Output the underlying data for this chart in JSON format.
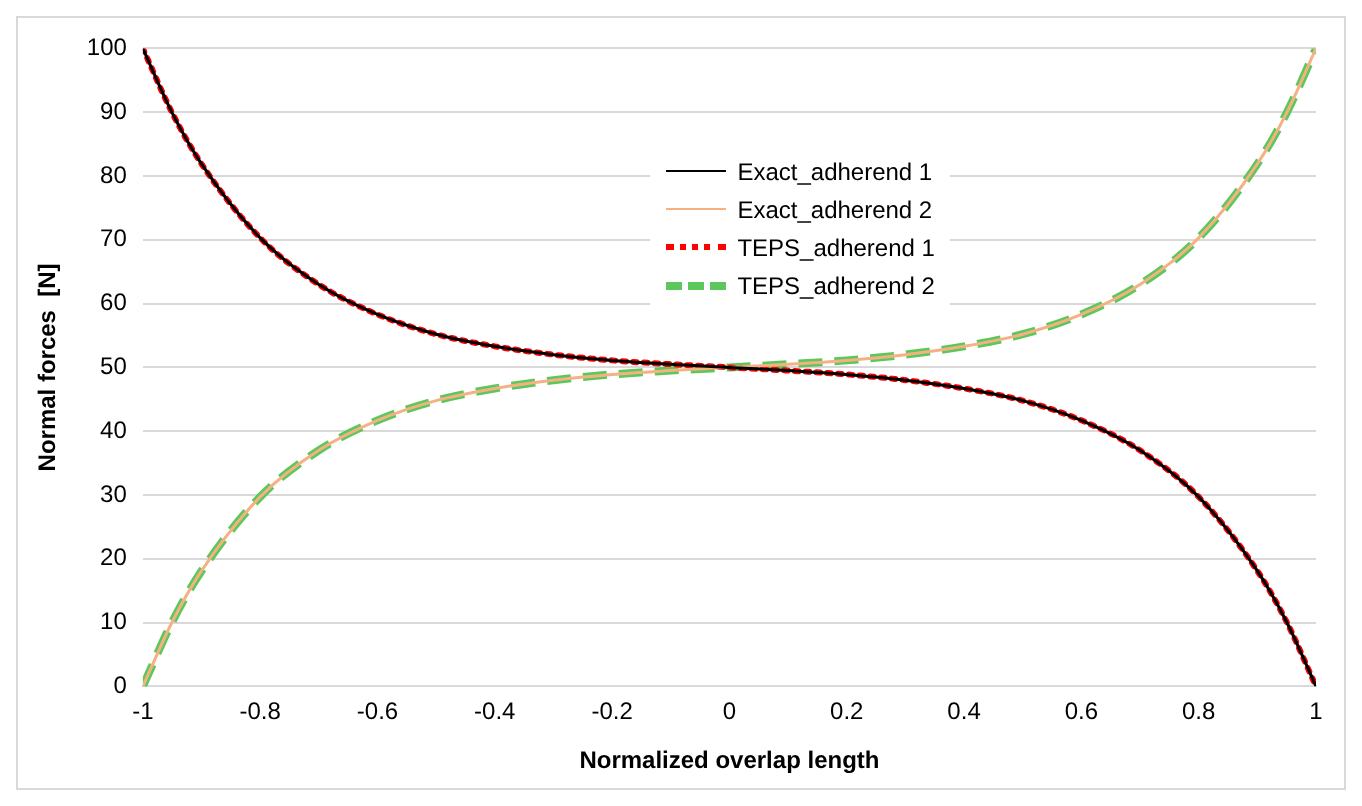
{
  "chart_data": {
    "type": "line",
    "xlabel": "Normalized overlap length",
    "ylabel": "Normal forces  [N]",
    "x": [
      -1,
      -0.95,
      -0.9,
      -0.8,
      -0.7,
      -0.6,
      -0.5,
      -0.4,
      -0.3,
      -0.2,
      -0.1,
      0,
      0.1,
      0.2,
      0.3,
      0.4,
      0.5,
      0.6,
      0.7,
      0.8,
      0.9,
      0.95,
      1
    ],
    "series": [
      {
        "name": "Exact_adherend 1",
        "color": "#000000",
        "line_style": "solid",
        "values": [
          100,
          89.9,
          81.9,
          70.3,
          63,
          58.3,
          55.2,
          53.3,
          52,
          51.1,
          50.5,
          50,
          49.5,
          48.9,
          48,
          46.7,
          44.8,
          41.7,
          37,
          29.7,
          18.1,
          10.1,
          0
        ]
      },
      {
        "name": "Exact_adherend 2",
        "color": "#f4b183",
        "line_style": "solid",
        "values": [
          0,
          10.1,
          18.1,
          29.7,
          37,
          41.7,
          44.8,
          46.7,
          48,
          48.9,
          49.5,
          50,
          50.5,
          51.1,
          52,
          53.3,
          55.2,
          58.3,
          63,
          70.3,
          81.9,
          89.9,
          100
        ]
      },
      {
        "name": "TEPS_adherend 1",
        "color": "#ff0000",
        "line_style": "dotted",
        "values": [
          100,
          89.9,
          81.9,
          70.3,
          63,
          58.3,
          55.2,
          53.3,
          52,
          51.1,
          50.5,
          50,
          49.5,
          48.9,
          48,
          46.7,
          44.8,
          41.7,
          37,
          29.7,
          18.1,
          10.1,
          0
        ]
      },
      {
        "name": "TEPS_adherend 2",
        "color": "#5cc85c",
        "line_style": "dashed",
        "values": [
          0,
          10.1,
          18.1,
          29.7,
          37,
          41.7,
          44.8,
          46.7,
          48,
          48.9,
          49.5,
          50,
          50.5,
          51.1,
          52,
          53.3,
          55.2,
          58.3,
          63,
          70.3,
          81.9,
          89.9,
          100
        ]
      }
    ],
    "xlim": [
      -1,
      1
    ],
    "xticks": [
      -1,
      -0.8,
      -0.6,
      -0.4,
      -0.2,
      0,
      0.2,
      0.4,
      0.6,
      0.8,
      1
    ],
    "ylim": [
      0,
      100
    ],
    "yticks": [
      0,
      10,
      20,
      30,
      40,
      50,
      60,
      70,
      80,
      90,
      100
    ],
    "grid": "y",
    "legend": "top",
    "marker": "none"
  }
}
